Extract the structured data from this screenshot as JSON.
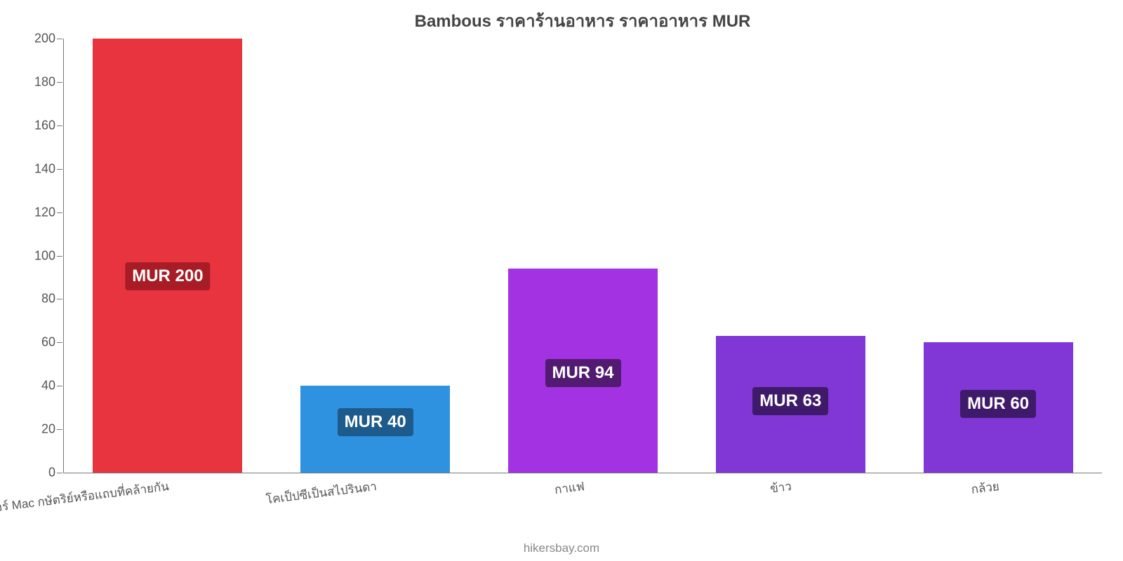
{
  "chart": {
    "type": "bar",
    "title": "Bambous ราคาร้านอาหาร ราคาอาหาร MUR",
    "title_fontsize": 24,
    "title_color": "#444444",
    "background_color": "#ffffff",
    "categories": [
      "เบอร์เกอร์ Mac กษัตริย์หรือแถบที่คล้ายกัน",
      "โคเป็ปซีเป็นสไปรินดา",
      "กาแฟ",
      "ข้าว",
      "กล้วย"
    ],
    "values": [
      200,
      40,
      94,
      63,
      60
    ],
    "value_labels": [
      "MUR 200",
      "MUR 40",
      "MUR 94",
      "MUR 63",
      "MUR 60"
    ],
    "bar_colors": [
      "#e8343f",
      "#2e92e0",
      "#a332e2",
      "#8037d6",
      "#8037d6"
    ],
    "value_label_bg": [
      "#a81c26",
      "#1d5b8c",
      "#521a70",
      "#3f1a6a",
      "#3f1a6a"
    ],
    "value_label_fontsize": 24,
    "yaxis": {
      "min": 0,
      "max": 200,
      "tick_step": 20,
      "tick_color": "#777777",
      "label_color": "#555555",
      "label_fontsize": 18
    },
    "xaxis": {
      "label_color": "#555555",
      "label_fontsize": 17,
      "rotation_deg": -7
    },
    "bar_width_ratio": 0.72,
    "credit": "hikersbay.com",
    "credit_color": "#888888",
    "credit_fontsize": 17
  }
}
